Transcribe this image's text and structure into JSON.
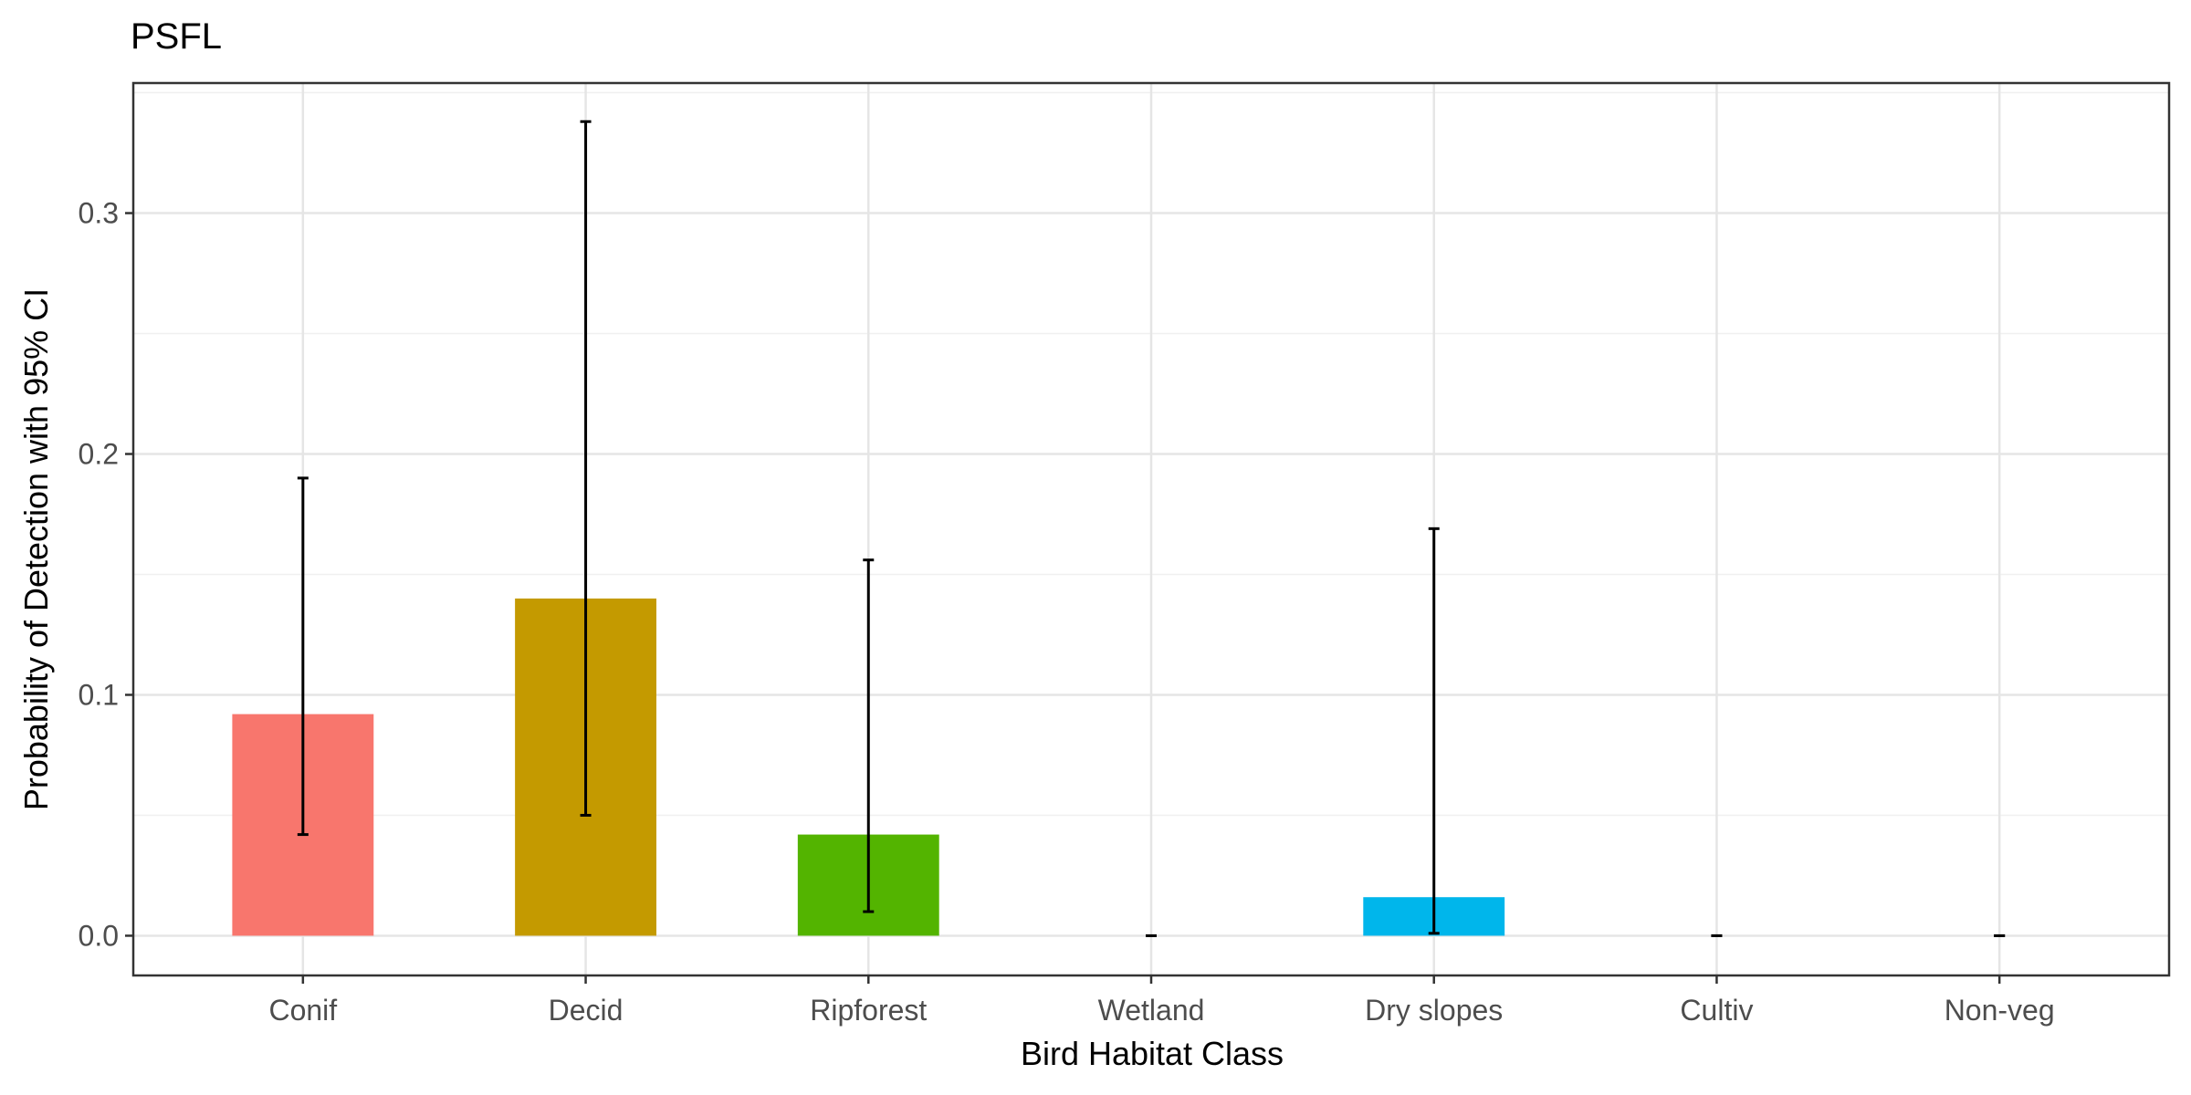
{
  "chart_data": {
    "type": "bar",
    "title": "PSFL",
    "xlabel": "Bird Habitat Class",
    "ylabel": "Probability of Detection with 95% CI",
    "categories": [
      "Conif",
      "Decid",
      "Ripforest",
      "Wetland",
      "Dry slopes",
      "Cultiv",
      "Non-veg"
    ],
    "values": [
      0.092,
      0.14,
      0.042,
      0.0,
      0.016,
      0.0,
      0.0
    ],
    "ci_lower": [
      0.042,
      0.05,
      0.01,
      0.0,
      0.001,
      0.0,
      0.0
    ],
    "ci_upper": [
      0.19,
      0.338,
      0.156,
      0.0,
      0.169,
      0.0,
      0.0
    ],
    "colors": [
      "#F8766D",
      "#C49A00",
      "#53B400",
      "#00C094",
      "#00B6EB",
      "#A58AFF",
      "#FB61D7"
    ],
    "ylim": [
      -0.0165,
      0.354
    ],
    "yticks": [
      0.0,
      0.1,
      0.2,
      0.3
    ],
    "ytick_labels": [
      "0.0",
      "0.1",
      "0.2",
      "0.3"
    ],
    "grid": true,
    "legend": "none"
  }
}
